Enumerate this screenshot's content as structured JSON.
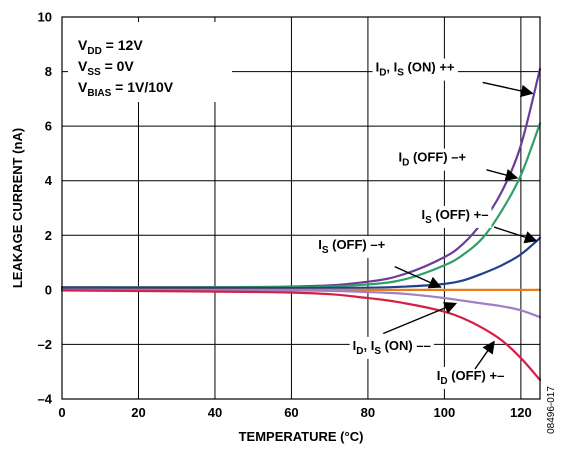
{
  "chart_data": {
    "type": "line",
    "xlabel": "TEMPERATURE (°C)",
    "ylabel": "LEAKAGE CURRENT (nA)",
    "xlim": [
      0,
      125
    ],
    "ylim": [
      -4,
      10
    ],
    "xticks": [
      0,
      20,
      40,
      60,
      80,
      100,
      120
    ],
    "xtick_labels": [
      "0",
      "20",
      "40",
      "60",
      "80",
      "100",
      "120"
    ],
    "yticks": [
      -4,
      -2,
      0,
      2,
      4,
      6,
      8,
      10
    ],
    "ytick_labels": [
      "–4",
      "–2",
      "0",
      "2",
      "4",
      "6",
      "8",
      "10"
    ],
    "grid": true,
    "conditions": [
      {
        "main": "V",
        "sub": "DD",
        "rest": " = 12V"
      },
      {
        "main": "V",
        "sub": "SS",
        "rest": " = 0V"
      },
      {
        "main": "V",
        "sub": "BIAS",
        "rest": " = 1V/10V"
      }
    ],
    "series": [
      {
        "color": "#6a3d9a",
        "x": [
          0,
          60,
          80,
          90,
          100,
          105,
          110,
          115,
          120,
          125
        ],
        "y": [
          0.1,
          0.12,
          0.3,
          0.6,
          1.2,
          1.7,
          2.5,
          3.6,
          5.3,
          8.1
        ]
      },
      {
        "color": "#2e9e6b",
        "x": [
          0,
          60,
          80,
          90,
          100,
          105,
          110,
          115,
          120,
          125
        ],
        "y": [
          0.08,
          0.1,
          0.2,
          0.4,
          0.9,
          1.3,
          1.9,
          2.9,
          4.2,
          6.1
        ]
      },
      {
        "color": "#1f3f8f",
        "x": [
          0,
          60,
          80,
          90,
          100,
          105,
          110,
          115,
          120,
          125
        ],
        "y": [
          0.06,
          0.07,
          0.08,
          0.12,
          0.22,
          0.35,
          0.6,
          0.9,
          1.3,
          1.9
        ]
      },
      {
        "color": "#e87d1e",
        "x": [
          0,
          125
        ],
        "y": [
          0.0,
          0.0
        ]
      },
      {
        "color": "#a17fc4",
        "x": [
          0,
          60,
          80,
          90,
          100,
          105,
          110,
          115,
          120,
          125
        ],
        "y": [
          0.0,
          -0.02,
          -0.08,
          -0.15,
          -0.3,
          -0.4,
          -0.5,
          -0.6,
          -0.75,
          -1.0
        ]
      },
      {
        "color": "#d41f46",
        "x": [
          0,
          60,
          80,
          90,
          100,
          105,
          110,
          115,
          120,
          125
        ],
        "y": [
          -0.02,
          -0.1,
          -0.3,
          -0.5,
          -0.8,
          -1.05,
          -1.4,
          -1.85,
          -2.5,
          -3.3
        ]
      }
    ],
    "annotations": [
      {
        "parts": [
          {
            "t": "I",
            "sub": "D"
          },
          {
            "t": ", I",
            "sub": "S"
          },
          {
            "t": " (ON) ++"
          }
        ],
        "text_at": [
          82,
          8.0
        ],
        "arrow_from": [
          110,
          7.6
        ],
        "arrow_to": [
          123,
          7.2
        ]
      },
      {
        "parts": [
          {
            "t": "I",
            "sub": "D"
          },
          {
            "t": " (OFF) –+"
          }
        ],
        "text_at": [
          88,
          4.7
        ],
        "arrow_from": [
          111,
          4.4
        ],
        "arrow_to": [
          119,
          4.1
        ]
      },
      {
        "parts": [
          {
            "t": "I",
            "sub": "S"
          },
          {
            "t": " (OFF) +–"
          }
        ],
        "text_at": [
          94,
          2.6
        ],
        "arrow_from": [
          113,
          2.3
        ],
        "arrow_to": [
          124,
          1.8
        ]
      },
      {
        "parts": [
          {
            "t": "I",
            "sub": "S"
          },
          {
            "t": " (OFF) –+"
          }
        ],
        "text_at": [
          67,
          1.5
        ],
        "arrow_from": [
          87,
          0.85
        ],
        "arrow_to": [
          99,
          0.1
        ]
      },
      {
        "parts": [
          {
            "t": "I",
            "sub": "D"
          },
          {
            "t": ", I",
            "sub": "S"
          },
          {
            "t": " (ON) ––"
          }
        ],
        "text_at": [
          76,
          -2.2
        ],
        "arrow_from": [
          84,
          -1.6
        ],
        "arrow_to": [
          103,
          -0.5
        ]
      },
      {
        "parts": [
          {
            "t": "I",
            "sub": "D"
          },
          {
            "t": " (OFF) +–"
          }
        ],
        "text_at": [
          98,
          -3.3
        ],
        "arrow_from": [
          108,
          -2.9
        ],
        "arrow_to": [
          113,
          -1.9
        ]
      }
    ],
    "figure_id": "08496-017"
  }
}
